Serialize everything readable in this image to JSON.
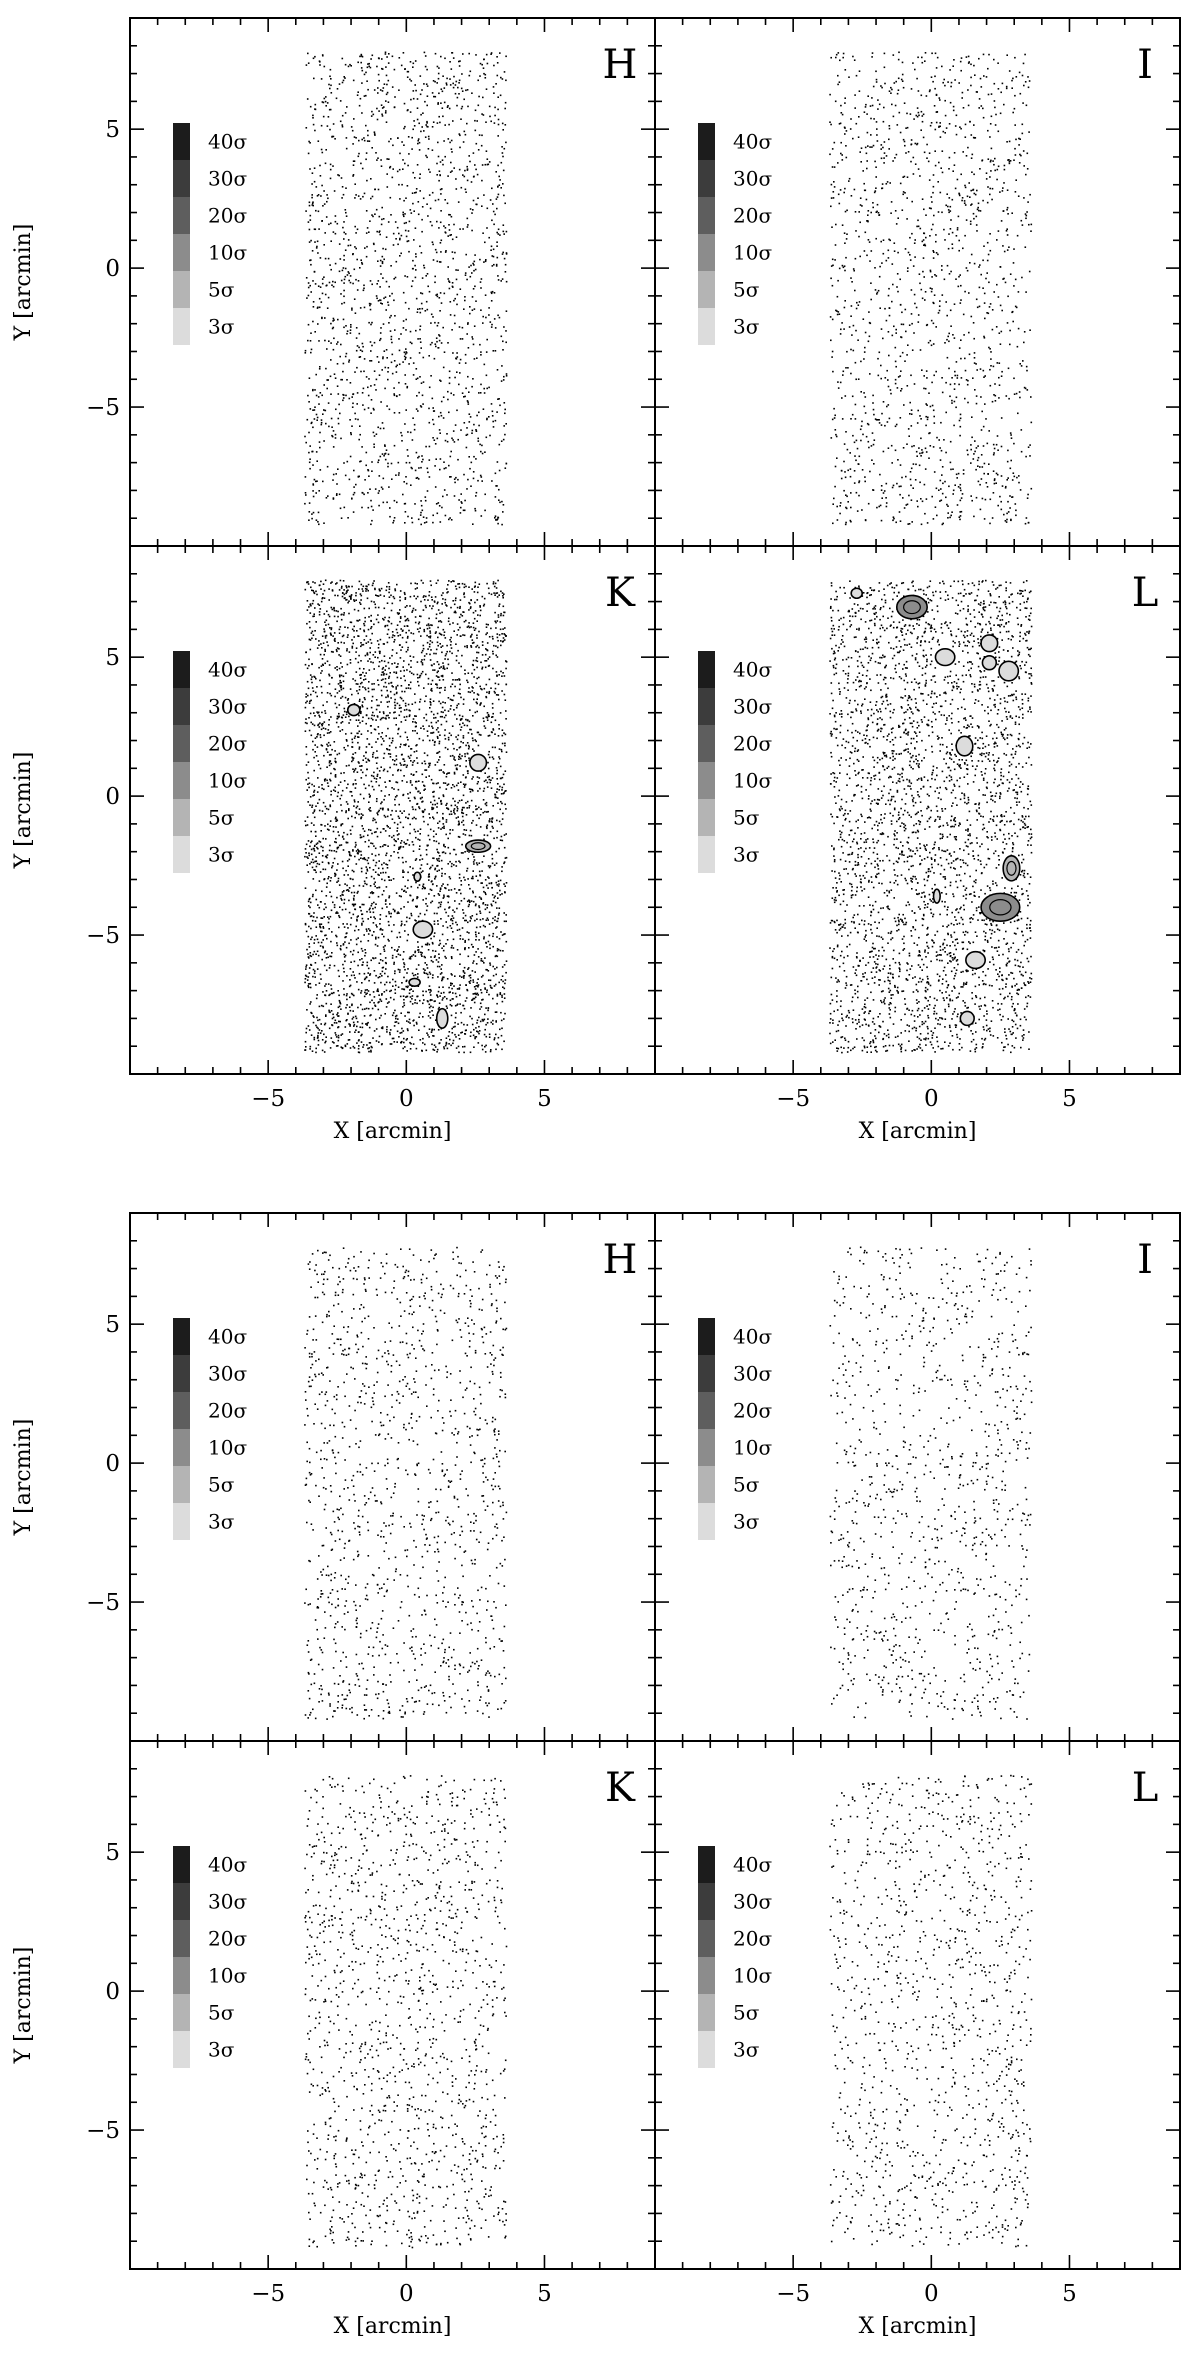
{
  "chart_data": [
    {
      "type": "scatter",
      "figure": "top",
      "xlabel": "X [arcmin]",
      "ylabel": "Y [arcmin]",
      "xlim": [
        -10,
        9
      ],
      "ylim": [
        -10,
        9
      ],
      "x_ticks": [
        -5,
        0,
        5
      ],
      "y_ticks": [
        -5,
        0,
        5
      ],
      "x_tick_labels": [
        "−5",
        "0",
        "5"
      ],
      "y_tick_labels": [
        "−5",
        "0",
        "5"
      ],
      "grid": false,
      "legend": {
        "position": "left",
        "levels": [
          "40σ",
          "30σ",
          "20σ",
          "10σ",
          "5σ",
          "3σ"
        ],
        "colors": [
          "#1c1c1c",
          "#3c3c3c",
          "#5e5e5e",
          "#8c8c8c",
          "#b4b4b4",
          "#dcdcdc"
        ]
      },
      "panels": [
        {
          "label": "H",
          "field_x": [
            -3.7,
            3.6
          ],
          "field_y": [
            -9.2,
            7.8
          ],
          "point_count": 1800,
          "seed": 11,
          "contours": []
        },
        {
          "label": "I",
          "field_x": [
            -3.7,
            3.6
          ],
          "field_y": [
            -9.2,
            7.8
          ],
          "point_count": 1450,
          "seed": 23,
          "contours": []
        },
        {
          "label": "K",
          "field_x": [
            -3.7,
            3.6
          ],
          "field_y": [
            -9.2,
            7.8
          ],
          "point_count": 4200,
          "seed": 37,
          "contours": [
            {
              "x": -1.9,
              "y": 3.1,
              "rx": 0.22,
              "ry": 0.2,
              "level": "3σ"
            },
            {
              "x": 2.6,
              "y": 1.2,
              "rx": 0.3,
              "ry": 0.3,
              "level": "3σ"
            },
            {
              "x": 2.6,
              "y": -1.8,
              "rx": 0.45,
              "ry": 0.22,
              "level": "5σ"
            },
            {
              "x": 0.4,
              "y": -2.9,
              "rx": 0.12,
              "ry": 0.16,
              "level": "3σ"
            },
            {
              "x": 0.6,
              "y": -4.8,
              "rx": 0.35,
              "ry": 0.3,
              "level": "3σ"
            },
            {
              "x": 0.3,
              "y": -6.7,
              "rx": 0.2,
              "ry": 0.14,
              "level": "3σ"
            },
            {
              "x": 1.3,
              "y": -8.0,
              "rx": 0.2,
              "ry": 0.35,
              "level": "3σ"
            }
          ]
        },
        {
          "label": "L",
          "field_x": [
            -3.7,
            3.6
          ],
          "field_y": [
            -9.2,
            7.8
          ],
          "point_count": 3300,
          "seed": 51,
          "contours": [
            {
              "x": -2.7,
              "y": 7.3,
              "rx": 0.2,
              "ry": 0.18,
              "level": "3σ"
            },
            {
              "x": -0.7,
              "y": 6.8,
              "rx": 0.55,
              "ry": 0.42,
              "level": "10σ"
            },
            {
              "x": 2.1,
              "y": 5.5,
              "rx": 0.3,
              "ry": 0.3,
              "level": "3σ"
            },
            {
              "x": 0.5,
              "y": 5.0,
              "rx": 0.35,
              "ry": 0.3,
              "level": "3σ"
            },
            {
              "x": 2.1,
              "y": 4.8,
              "rx": 0.25,
              "ry": 0.25,
              "level": "3σ"
            },
            {
              "x": 2.8,
              "y": 4.5,
              "rx": 0.35,
              "ry": 0.35,
              "level": "3σ"
            },
            {
              "x": 1.2,
              "y": 1.8,
              "rx": 0.3,
              "ry": 0.35,
              "level": "3σ"
            },
            {
              "x": 2.9,
              "y": -2.6,
              "rx": 0.3,
              "ry": 0.45,
              "level": "5σ"
            },
            {
              "x": 2.5,
              "y": -4.0,
              "rx": 0.7,
              "ry": 0.5,
              "level": "10σ"
            },
            {
              "x": 0.2,
              "y": -3.6,
              "rx": 0.12,
              "ry": 0.25,
              "level": "3σ"
            },
            {
              "x": 1.6,
              "y": -5.9,
              "rx": 0.35,
              "ry": 0.3,
              "level": "3σ"
            },
            {
              "x": 1.3,
              "y": -8.0,
              "rx": 0.25,
              "ry": 0.25,
              "level": "3σ"
            }
          ]
        }
      ]
    },
    {
      "type": "scatter",
      "figure": "bottom",
      "xlabel": "X [arcmin]",
      "ylabel": "Y [arcmin]",
      "xlim": [
        -10,
        9
      ],
      "ylim": [
        -10,
        9
      ],
      "x_ticks": [
        -5,
        0,
        5
      ],
      "y_ticks": [
        -5,
        0,
        5
      ],
      "x_tick_labels": [
        "−5",
        "0",
        "5"
      ],
      "y_tick_labels": [
        "−5",
        "0",
        "5"
      ],
      "grid": false,
      "legend": {
        "position": "left",
        "levels": [
          "40σ",
          "30σ",
          "20σ",
          "10σ",
          "5σ",
          "3σ"
        ],
        "colors": [
          "#1c1c1c",
          "#3c3c3c",
          "#5e5e5e",
          "#8c8c8c",
          "#b4b4b4",
          "#dcdcdc"
        ]
      },
      "panels": [
        {
          "label": "H",
          "field_x": [
            -3.7,
            3.6
          ],
          "field_y": [
            -9.2,
            7.8
          ],
          "point_count": 1250,
          "seed": 67,
          "contours": []
        },
        {
          "label": "I",
          "field_x": [
            -3.7,
            3.6
          ],
          "field_y": [
            -9.2,
            7.8
          ],
          "point_count": 1000,
          "seed": 79,
          "contours": []
        },
        {
          "label": "K",
          "field_x": [
            -3.7,
            3.6
          ],
          "field_y": [
            -9.2,
            7.8
          ],
          "point_count": 1350,
          "seed": 83,
          "contours": []
        },
        {
          "label": "L",
          "field_x": [
            -3.7,
            3.6
          ],
          "field_y": [
            -9.2,
            7.8
          ],
          "point_count": 1150,
          "seed": 97,
          "contours": []
        }
      ]
    }
  ]
}
